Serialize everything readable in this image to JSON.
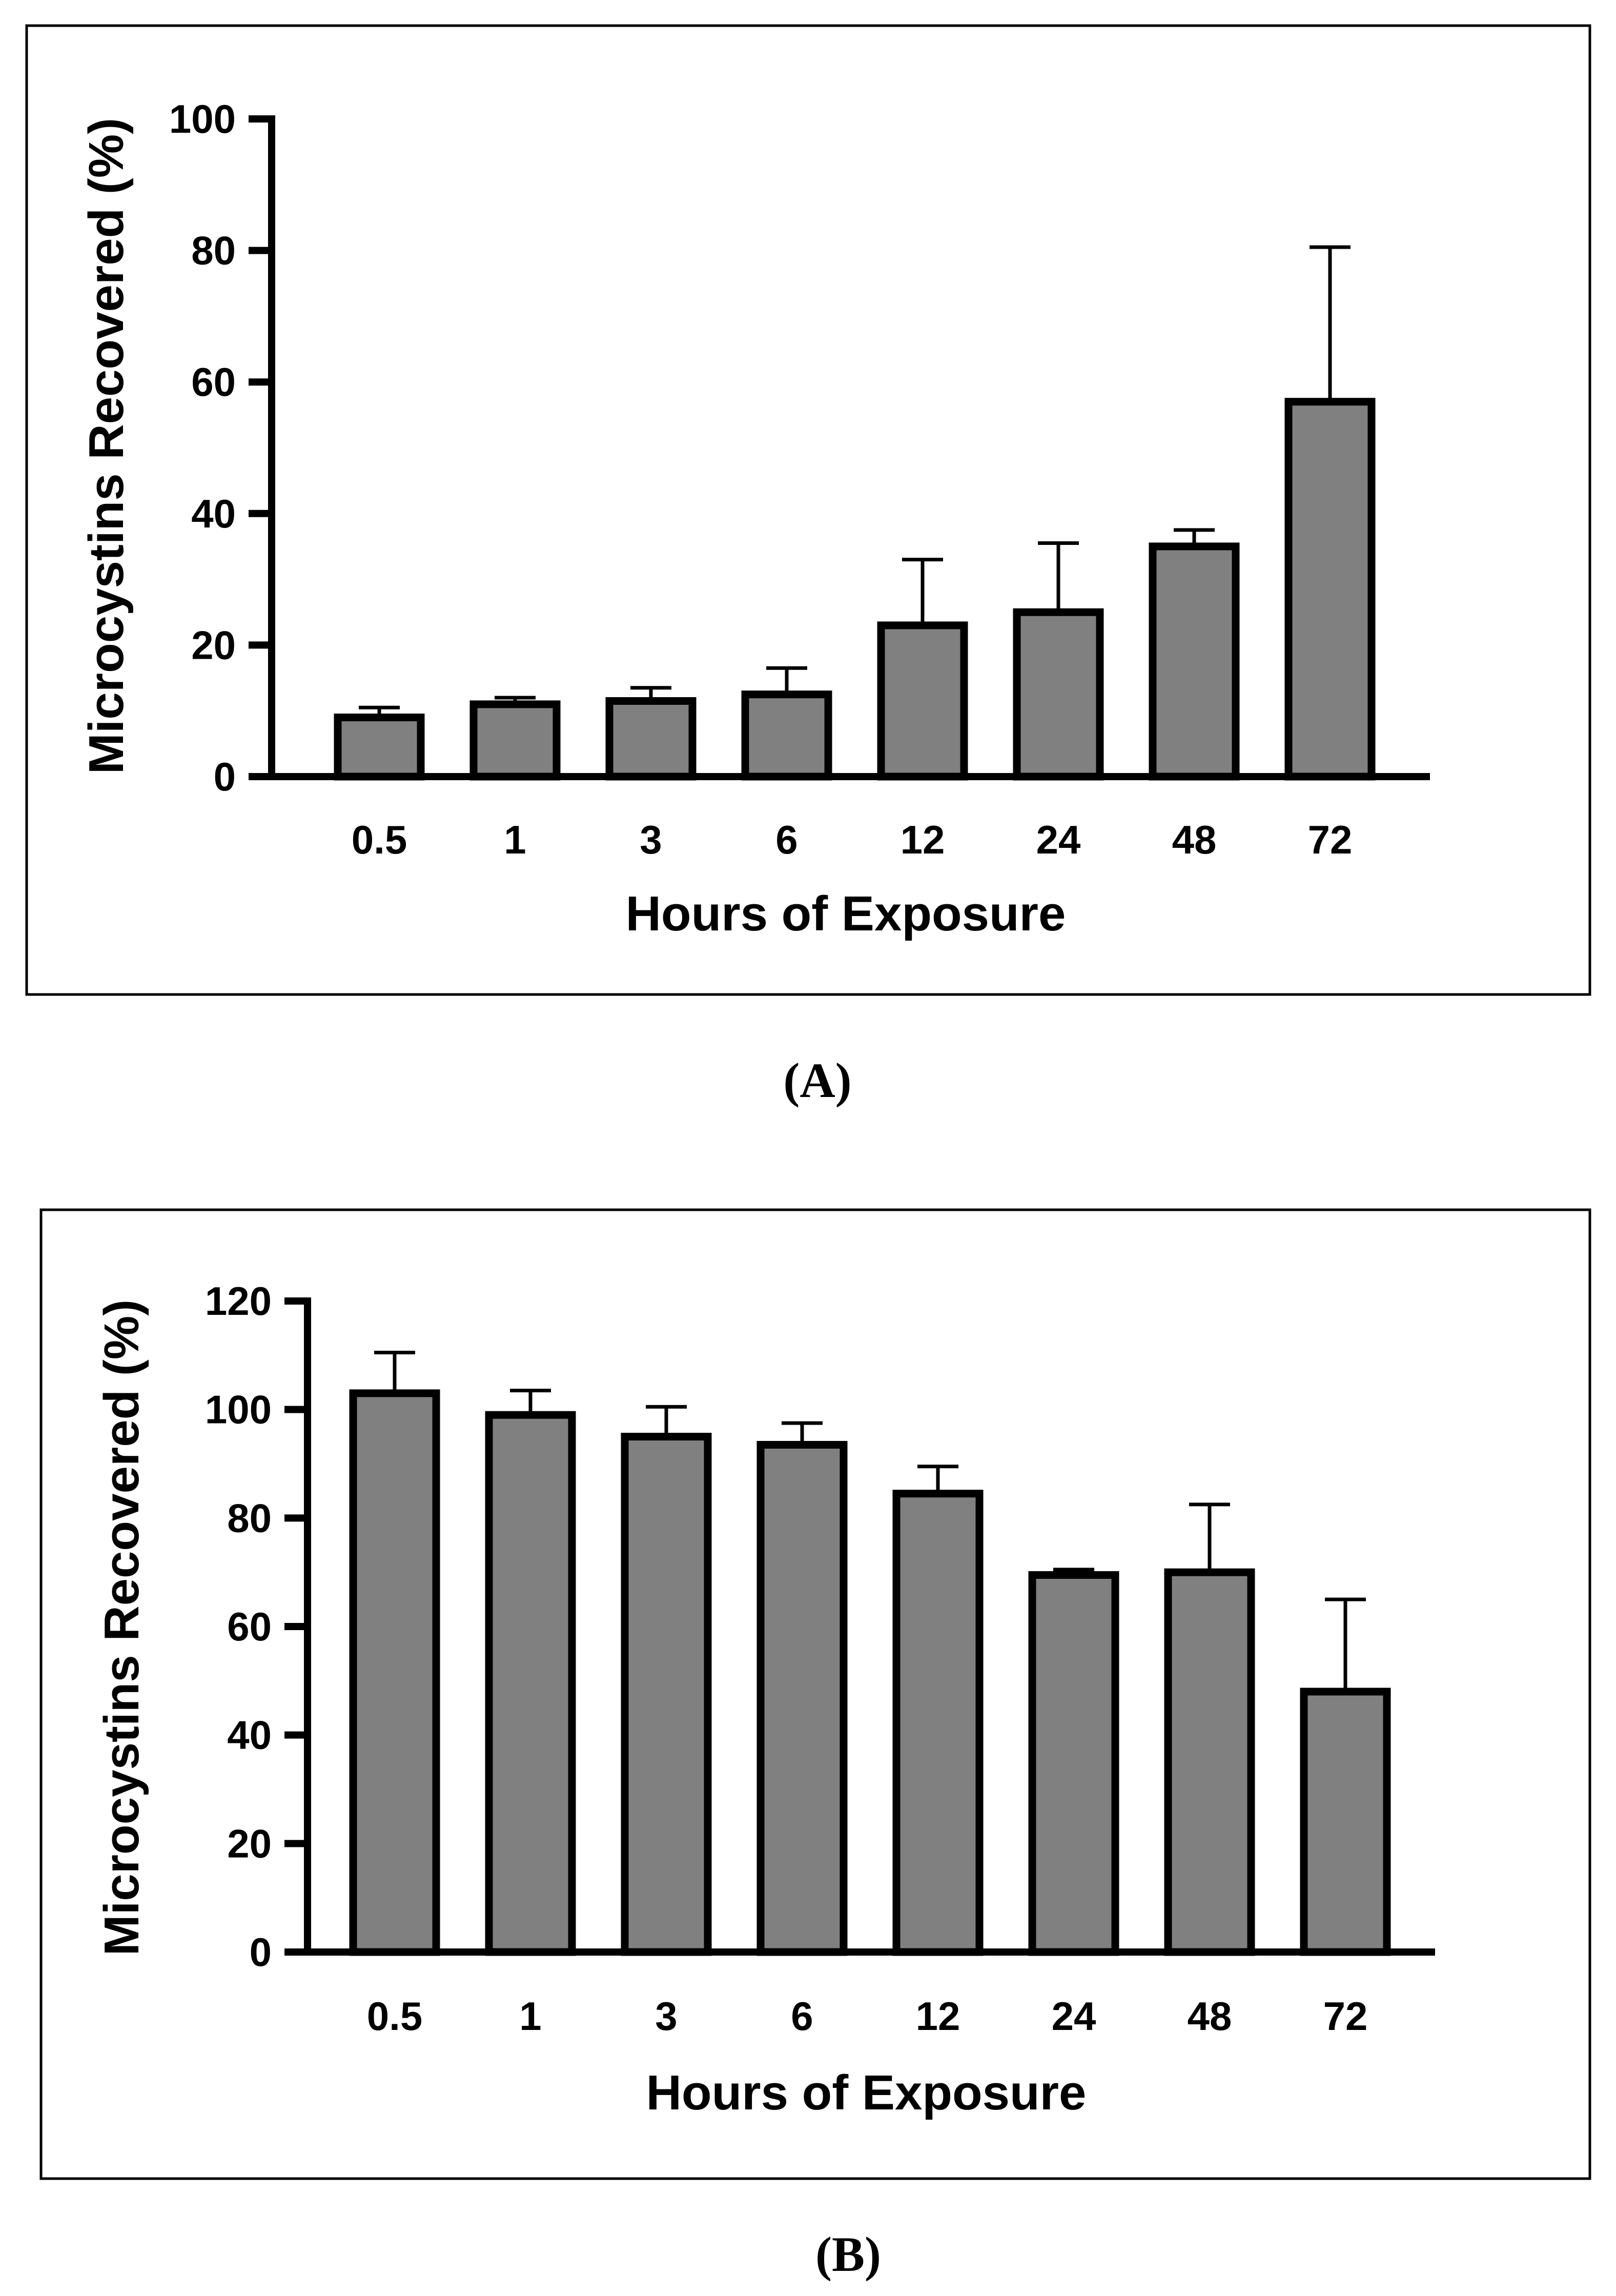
{
  "chart_data": [
    {
      "type": "bar",
      "panel_label": "(A)",
      "categories": [
        "0.5",
        "1",
        "3",
        "6",
        "12",
        "24",
        "48",
        "72"
      ],
      "values": [
        9,
        11,
        11.5,
        12.5,
        23,
        25,
        35,
        57
      ],
      "error_upper": [
        10.5,
        12,
        13.5,
        16.5,
        33,
        35.5,
        37.5,
        80.5
      ],
      "xlabel": "Hours of Exposure",
      "ylabel": "Microcystins Recovered (%)",
      "ylim": [
        0,
        100
      ],
      "yticks": [
        0,
        20,
        40,
        60,
        80,
        100
      ]
    },
    {
      "type": "bar",
      "panel_label": "(B)",
      "categories": [
        "0.5",
        "1",
        "3",
        "6",
        "12",
        "24",
        "48",
        "72"
      ],
      "values": [
        103,
        99,
        95,
        93.5,
        84.5,
        69.5,
        70,
        48
      ],
      "error_upper": [
        110.5,
        103.5,
        100.5,
        97.5,
        89.5,
        70.5,
        82.5,
        65
      ],
      "xlabel": "Hours of Exposure",
      "ylabel": "Microcystins Recovered (%)",
      "ylim": [
        0,
        120
      ],
      "yticks": [
        0,
        20,
        40,
        60,
        80,
        100,
        120
      ]
    }
  ],
  "colors": {
    "bar_fill": "#808080",
    "stroke": "#000000"
  }
}
